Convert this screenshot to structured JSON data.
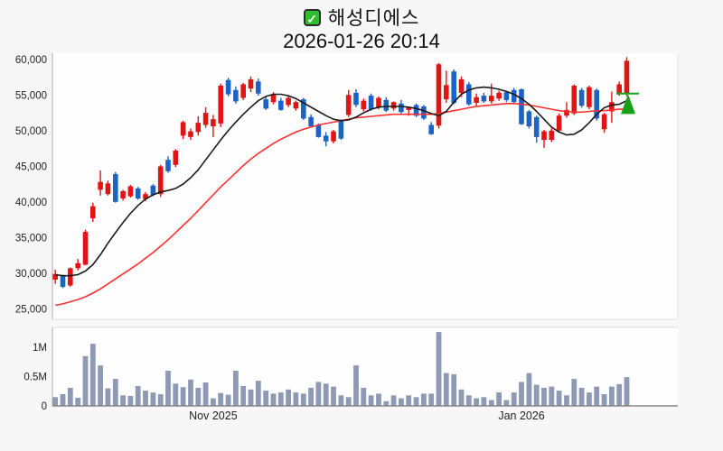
{
  "header": {
    "title": "해성디에스",
    "timestamp": "2026-01-26 20:14",
    "check_glyph": "✓"
  },
  "colors": {
    "up_candle": "#e01414",
    "down_candle": "#1b63c5",
    "ma_fast": "#1a1a1a",
    "ma_slow": "#ff3030",
    "volume_bar": "#8e99b5",
    "marker_green": "#18a018",
    "axis_spine": "#aaaaaa",
    "baseline": "#888888",
    "panel_bg": "#fefefe",
    "page_bg": "#f7f7f7",
    "tick_text": "#222222"
  },
  "chart_data": {
    "type": "candlestick_with_volume",
    "title": "해성디에스",
    "subtitle": "2026-01-26 20:14",
    "grid": false,
    "legend_position": "none",
    "price_axis": {
      "side": "left",
      "range_labels_top_to_bottom": [
        "60,000",
        "55,000",
        "50,000",
        "45,000",
        "40,000",
        "35,000",
        "30,000",
        "25,000"
      ],
      "ticks": [
        {
          "label": "60,000",
          "value": 60000
        },
        {
          "label": "55,000",
          "value": 55000
        },
        {
          "label": "50,000",
          "value": 50000
        },
        {
          "label": "45,000",
          "value": 45000
        },
        {
          "label": "40,000",
          "value": 40000
        },
        {
          "label": "35,000",
          "value": 35000
        },
        {
          "label": "30,000",
          "value": 30000
        },
        {
          "label": "25,000",
          "value": 25000
        }
      ]
    },
    "volume_axis": {
      "ticks": [
        {
          "label": "1M",
          "value": 1.0
        },
        {
          "label": "0.5M",
          "value": 0.5
        },
        {
          "label": "0",
          "value": 0
        }
      ]
    },
    "x_axis": {
      "ticks": [
        {
          "label": "Nov 2025",
          "index": 21
        },
        {
          "label": "Jan 2026",
          "index": 62
        }
      ]
    },
    "candles_ohlc": [
      [
        29100,
        30500,
        28500,
        29900
      ],
      [
        29600,
        29800,
        27900,
        28100
      ],
      [
        28300,
        30800,
        28100,
        30700
      ],
      [
        30700,
        32000,
        30400,
        31400
      ],
      [
        31200,
        36100,
        31100,
        35800
      ],
      [
        37700,
        39900,
        37200,
        39400
      ],
      [
        41700,
        44400,
        40900,
        42800
      ],
      [
        41100,
        43000,
        40900,
        42600
      ],
      [
        43900,
        44200,
        39900,
        40000
      ],
      [
        40500,
        41700,
        40200,
        41500
      ],
      [
        40800,
        42400,
        40600,
        42200
      ],
      [
        41900,
        42100,
        40300,
        40500
      ],
      [
        40400,
        41400,
        40100,
        41100
      ],
      [
        42300,
        42500,
        40800,
        41000
      ],
      [
        41100,
        45200,
        40700,
        45000
      ],
      [
        45900,
        46400,
        44100,
        44300
      ],
      [
        45200,
        47400,
        44900,
        47200
      ],
      [
        49300,
        51400,
        48800,
        51200
      ],
      [
        49100,
        50300,
        48700,
        49900
      ],
      [
        49800,
        52000,
        49300,
        51100
      ],
      [
        50800,
        53300,
        50400,
        52500
      ],
      [
        50600,
        52200,
        49100,
        51600
      ],
      [
        51000,
        56600,
        50500,
        56300
      ],
      [
        57100,
        57400,
        54800,
        55100
      ],
      [
        55700,
        56200,
        53800,
        54100
      ],
      [
        54600,
        56700,
        54300,
        56500
      ],
      [
        55900,
        57600,
        55400,
        57200
      ],
      [
        56900,
        57300,
        54900,
        55200
      ],
      [
        54400,
        54800,
        52900,
        53100
      ],
      [
        54000,
        55400,
        53700,
        55100
      ],
      [
        54200,
        54600,
        52800,
        52900
      ],
      [
        53600,
        54900,
        53300,
        54600
      ],
      [
        53100,
        54200,
        52800,
        54000
      ],
      [
        54400,
        54600,
        51500,
        51700
      ],
      [
        51900,
        52300,
        50400,
        50600
      ],
      [
        50800,
        51000,
        49000,
        49100
      ],
      [
        49300,
        49800,
        47800,
        48500
      ],
      [
        48500,
        50100,
        48200,
        49900
      ],
      [
        51400,
        51600,
        48700,
        48900
      ],
      [
        52200,
        55700,
        51900,
        55000
      ],
      [
        55300,
        55800,
        53300,
        53600
      ],
      [
        53000,
        54500,
        52700,
        54200
      ],
      [
        54900,
        55200,
        52800,
        53000
      ],
      [
        53300,
        54800,
        53000,
        54600
      ],
      [
        54300,
        54700,
        52600,
        52800
      ],
      [
        53100,
        54100,
        52800,
        54000
      ],
      [
        53800,
        54300,
        52400,
        52600
      ],
      [
        52900,
        53400,
        52100,
        53200
      ],
      [
        53600,
        53800,
        51900,
        52100
      ],
      [
        53400,
        53600,
        51500,
        51700
      ],
      [
        50800,
        51200,
        49400,
        49500
      ],
      [
        50700,
        59500,
        50300,
        59300
      ],
      [
        54400,
        58400,
        53900,
        56400
      ],
      [
        58300,
        58600,
        53700,
        53900
      ],
      [
        55300,
        57600,
        54700,
        57200
      ],
      [
        56500,
        56800,
        53500,
        53700
      ],
      [
        53900,
        55200,
        53400,
        54700
      ],
      [
        54900,
        55300,
        53900,
        54100
      ],
      [
        54100,
        56600,
        53800,
        54900
      ],
      [
        54500,
        55600,
        54200,
        55300
      ],
      [
        55400,
        55600,
        54000,
        54300
      ],
      [
        55700,
        56000,
        53800,
        54000
      ],
      [
        55800,
        55900,
        50800,
        50900
      ],
      [
        52700,
        52900,
        50300,
        50600
      ],
      [
        51900,
        52100,
        48300,
        49100
      ],
      [
        48700,
        50100,
        47600,
        49900
      ],
      [
        48700,
        50300,
        48400,
        50000
      ],
      [
        50000,
        52400,
        49800,
        52100
      ],
      [
        52100,
        54000,
        51800,
        52900
      ],
      [
        52400,
        56500,
        52200,
        56300
      ],
      [
        55700,
        56000,
        53200,
        53500
      ],
      [
        53300,
        56300,
        53000,
        56100
      ],
      [
        55700,
        55900,
        51400,
        51700
      ],
      [
        50200,
        52500,
        49700,
        52300
      ],
      [
        52700,
        55500,
        51100,
        54000
      ],
      [
        55200,
        56900,
        54900,
        56500
      ],
      [
        55200,
        60300,
        54800,
        59800
      ]
    ],
    "volumes_millions": [
      0.15,
      0.2,
      0.31,
      0.14,
      0.85,
      1.06,
      0.69,
      0.3,
      0.46,
      0.18,
      0.17,
      0.34,
      0.26,
      0.23,
      0.2,
      0.6,
      0.38,
      0.32,
      0.45,
      0.31,
      0.4,
      0.13,
      0.22,
      0.19,
      0.6,
      0.34,
      0.28,
      0.43,
      0.26,
      0.21,
      0.23,
      0.28,
      0.23,
      0.21,
      0.31,
      0.41,
      0.38,
      0.33,
      0.18,
      0.15,
      0.69,
      0.31,
      0.18,
      0.21,
      0.08,
      0.18,
      0.13,
      0.18,
      0.15,
      0.21,
      0.21,
      1.26,
      0.56,
      0.54,
      0.28,
      0.18,
      0.13,
      0.15,
      0.1,
      0.23,
      0.1,
      0.23,
      0.41,
      0.56,
      0.36,
      0.31,
      0.33,
      0.26,
      0.18,
      0.46,
      0.31,
      0.23,
      0.33,
      0.2,
      0.33,
      0.37,
      0.49
    ],
    "ma_fast_black": [
      29800,
      29650,
      29650,
      29800,
      30300,
      31200,
      32600,
      34200,
      35700,
      37100,
      38400,
      39500,
      40400,
      41000,
      41400,
      41600,
      41900,
      42500,
      43400,
      44500,
      45900,
      47300,
      48700,
      50000,
      51200,
      52300,
      53300,
      54200,
      54800,
      55100,
      55100,
      54900,
      54500,
      53900,
      53300,
      52700,
      52100,
      51600,
      51400,
      51500,
      51900,
      52500,
      53000,
      53300,
      53400,
      53400,
      53400,
      53300,
      53100,
      52800,
      52400,
      52100,
      52700,
      54000,
      55100,
      55700,
      56000,
      56100,
      56000,
      55800,
      55500,
      55100,
      54500,
      53700,
      52700,
      51600,
      50500,
      49800,
      49400,
      49500,
      50100,
      51100,
      52300,
      53200,
      53600,
      53700,
      54200
    ],
    "ma_slow_red": [
      25500,
      25700,
      26000,
      26300,
      26700,
      27200,
      27800,
      28500,
      29200,
      29900,
      30600,
      31300,
      32100,
      32900,
      33800,
      34700,
      35700,
      36700,
      37700,
      38800,
      39900,
      41000,
      42100,
      43100,
      44100,
      45100,
      46000,
      46800,
      47500,
      48200,
      48800,
      49300,
      49800,
      50200,
      50500,
      50800,
      51000,
      51200,
      51400,
      51600,
      51800,
      51900,
      52000,
      52100,
      52200,
      52300,
      52300,
      52300,
      52300,
      52300,
      52300,
      52400,
      52600,
      52800,
      53000,
      53200,
      53400,
      53500,
      53600,
      53700,
      53800,
      53800,
      53700,
      53600,
      53400,
      53200,
      53000,
      52800,
      52700,
      52600,
      52600,
      52700,
      52800,
      52800,
      52900,
      53000,
      53000
    ],
    "marker": {
      "type": "triangle-up",
      "at_last_candle": true,
      "price": 53600,
      "level_line_price": 55200,
      "color": "#18a018"
    }
  }
}
